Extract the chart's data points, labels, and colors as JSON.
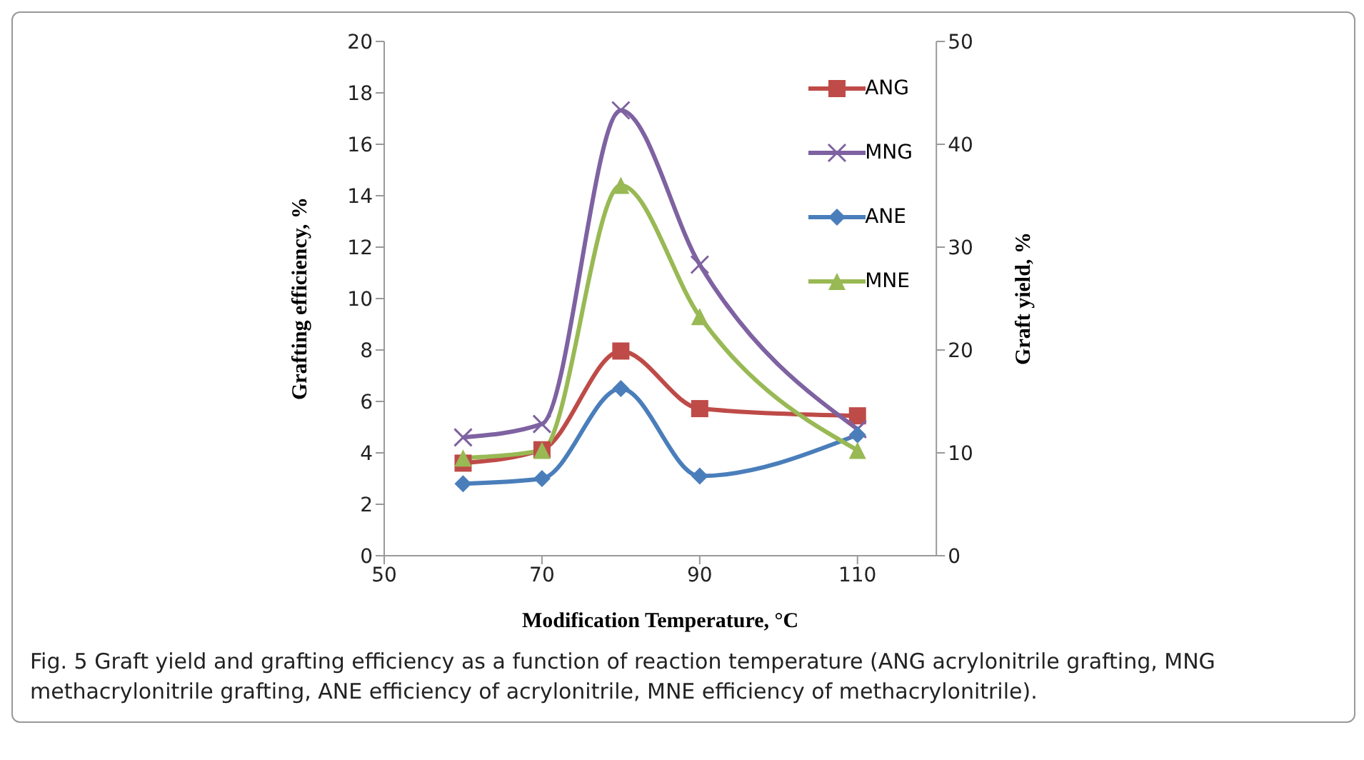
{
  "chart_data": {
    "type": "line",
    "title": "Fig. 5  Graft yield and grafting efficiency as a function of reaction temperature (ANG acrylonitrile grafting, MNG methacrylonitrile grafting, ANE efficiency of acrylonitrile, MNE efficiency of methacrylonitrile).",
    "xlabel": "Modification Temperature, °C",
    "ylabel": "Grafting efficiency, %",
    "y2label": "Graft yield, %",
    "x": [
      60,
      70,
      80,
      90,
      110
    ],
    "xlim": [
      50,
      120
    ],
    "xticks": [
      50,
      70,
      90,
      110
    ],
    "ylim": [
      0,
      20
    ],
    "yticks": [
      0,
      2,
      4,
      6,
      8,
      10,
      12,
      14,
      16,
      18,
      20
    ],
    "y2lim": [
      0,
      50
    ],
    "y2ticks": [
      0,
      10,
      20,
      30,
      40,
      50
    ],
    "grid": false,
    "legend": "top right",
    "series": [
      {
        "name": "ANG",
        "color": "#be4b48",
        "axis": "y2",
        "marker": "square",
        "values": [
          9,
          10.3,
          19.9,
          14.3,
          13.6
        ]
      },
      {
        "name": "MNG",
        "color": "#7e62a1",
        "axis": "y2",
        "marker": "cross",
        "values": [
          11.5,
          12.8,
          43.3,
          28.3,
          12.3
        ]
      },
      {
        "name": "ANE",
        "color": "#4a7ebb",
        "marker": "diamond",
        "values": [
          2.8,
          3.0,
          6.5,
          3.1,
          4.7
        ]
      },
      {
        "name": "MNE",
        "color": "#98b954",
        "marker": "triangle",
        "values": [
          3.8,
          4.1,
          14.4,
          9.3,
          4.1
        ]
      }
    ]
  }
}
